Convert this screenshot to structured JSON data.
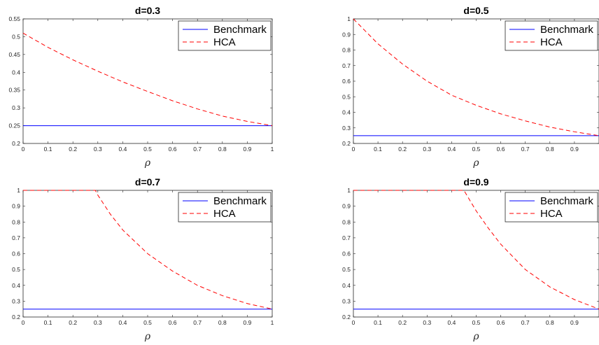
{
  "chart_data": [
    {
      "type": "line",
      "title": "d=0.3",
      "xlabel": "ρ",
      "ylabel": "",
      "xlim": [
        0,
        1
      ],
      "ylim": [
        0.2,
        0.55
      ],
      "xticks": [
        "0",
        "0.1",
        "0.2",
        "0.3",
        "0.4",
        "0.5",
        "0.6",
        "0.7",
        "0.8",
        "0.9",
        "1"
      ],
      "yticks": [
        "0.2",
        "0.25",
        "0.3",
        "0.35",
        "0.4",
        "0.45",
        "0.5",
        "0.55"
      ],
      "legend_position": "top-right",
      "series": [
        {
          "name": "Benchmark",
          "color": "#0000ff",
          "style": "solid",
          "x": [
            0,
            1
          ],
          "y": [
            0.25,
            0.25
          ]
        },
        {
          "name": "HCA",
          "color": "#ff0000",
          "style": "dashed",
          "x": [
            0,
            0.1,
            0.2,
            0.3,
            0.4,
            0.5,
            0.6,
            0.7,
            0.8,
            0.9,
            1.0
          ],
          "y": [
            0.51,
            0.47,
            0.435,
            0.403,
            0.373,
            0.346,
            0.32,
            0.297,
            0.277,
            0.262,
            0.25
          ]
        }
      ]
    },
    {
      "type": "line",
      "title": "d=0.5",
      "xlabel": "ρ",
      "ylabel": "",
      "xlim": [
        0,
        1
      ],
      "ylim": [
        0.2,
        1
      ],
      "xticks": [
        "0",
        "0.1",
        "0.2",
        "0.3",
        "0.4",
        "0.5",
        "0.6",
        "0.7",
        "0.8",
        "0.9"
      ],
      "yticks": [
        "0.2",
        "0.3",
        "0.4",
        "0.5",
        "0.6",
        "0.7",
        "0.8",
        "0.9",
        "1"
      ],
      "legend_position": "top-right",
      "series": [
        {
          "name": "Benchmark",
          "color": "#0000ff",
          "style": "solid",
          "x": [
            0,
            1
          ],
          "y": [
            0.25,
            0.25
          ]
        },
        {
          "name": "HCA",
          "color": "#ff0000",
          "style": "dashed",
          "x": [
            0,
            0.05,
            0.1,
            0.2,
            0.3,
            0.4,
            0.5,
            0.6,
            0.7,
            0.8,
            0.9,
            1.0
          ],
          "y": [
            1.0,
            0.92,
            0.84,
            0.71,
            0.6,
            0.51,
            0.445,
            0.39,
            0.345,
            0.305,
            0.275,
            0.25
          ]
        }
      ]
    },
    {
      "type": "line",
      "title": "d=0.7",
      "xlabel": "ρ",
      "ylabel": "",
      "xlim": [
        0,
        1
      ],
      "ylim": [
        0.2,
        1
      ],
      "xticks": [
        "0",
        "0.1",
        "0.2",
        "0.3",
        "0.4",
        "0.5",
        "0.6",
        "0.7",
        "0.8",
        "0.9",
        "1"
      ],
      "yticks": [
        "0.2",
        "0.3",
        "0.4",
        "0.5",
        "0.6",
        "0.7",
        "0.8",
        "0.9",
        "1"
      ],
      "legend_position": "top-right",
      "series": [
        {
          "name": "Benchmark",
          "color": "#0000ff",
          "style": "solid",
          "x": [
            0,
            1
          ],
          "y": [
            0.25,
            0.25
          ]
        },
        {
          "name": "HCA",
          "color": "#ff0000",
          "style": "dashed",
          "x": [
            0,
            0.29,
            0.3,
            0.35,
            0.4,
            0.5,
            0.6,
            0.7,
            0.8,
            0.9,
            1.0
          ],
          "y": [
            1.0,
            1.0,
            0.97,
            0.85,
            0.75,
            0.6,
            0.49,
            0.4,
            0.335,
            0.285,
            0.25
          ]
        }
      ]
    },
    {
      "type": "line",
      "title": "d=0.9",
      "xlabel": "ρ",
      "ylabel": "",
      "xlim": [
        0,
        1
      ],
      "ylim": [
        0.2,
        1
      ],
      "xticks": [
        "0",
        "0.1",
        "0.2",
        "0.3",
        "0.4",
        "0.5",
        "0.6",
        "0.7",
        "0.8",
        "0.9"
      ],
      "yticks": [
        "0.2",
        "0.3",
        "0.4",
        "0.5",
        "0.6",
        "0.7",
        "0.8",
        "0.9",
        "1"
      ],
      "legend_position": "top-right",
      "series": [
        {
          "name": "Benchmark",
          "color": "#0000ff",
          "style": "solid",
          "x": [
            0,
            1
          ],
          "y": [
            0.25,
            0.25
          ]
        },
        {
          "name": "HCA",
          "color": "#ff0000",
          "style": "dashed",
          "x": [
            0,
            0.45,
            0.5,
            0.55,
            0.6,
            0.7,
            0.8,
            0.9,
            1.0
          ],
          "y": [
            1.0,
            1.0,
            0.87,
            0.76,
            0.66,
            0.5,
            0.39,
            0.31,
            0.25
          ]
        }
      ]
    }
  ]
}
